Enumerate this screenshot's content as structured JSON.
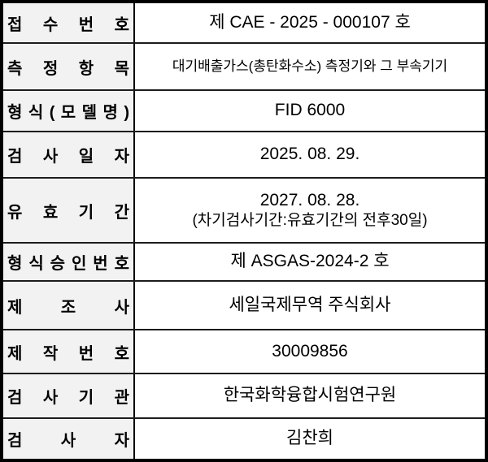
{
  "document": {
    "type": "inspection-certificate-table",
    "colors": {
      "border": "#000000",
      "label_background": "#f2f2f2",
      "value_background": "#ffffff",
      "text": "#000000"
    },
    "table": {
      "rows": [
        {
          "label": "접 수 번 호",
          "value": "제 CAE - 2025 - 000107 호"
        },
        {
          "label": "측 정 항 목",
          "value": "대기배출가스(총탄화수소) 측정기와 그 부속기기"
        },
        {
          "label": "형 식 ( 모 델 명 )",
          "value": "FID 6000"
        },
        {
          "label": "검 사 일 자",
          "value": "2025. 08. 29."
        },
        {
          "label": "유 효 기 간",
          "value": "2027. 08. 28.",
          "value_sub": "(차기검사기간:유효기간의 전후30일)"
        },
        {
          "label": "형 식 승 인 번 호",
          "value": "제 ASGAS-2024-2 호"
        },
        {
          "label": "제 조 사",
          "value": "세일국제무역 주식회사"
        },
        {
          "label": "제 작 번 호",
          "value": "30009856"
        },
        {
          "label": "검 사 기 관",
          "value": "한국화학융합시험연구원"
        },
        {
          "label": "검 사 자",
          "value": "김찬희"
        }
      ]
    }
  }
}
